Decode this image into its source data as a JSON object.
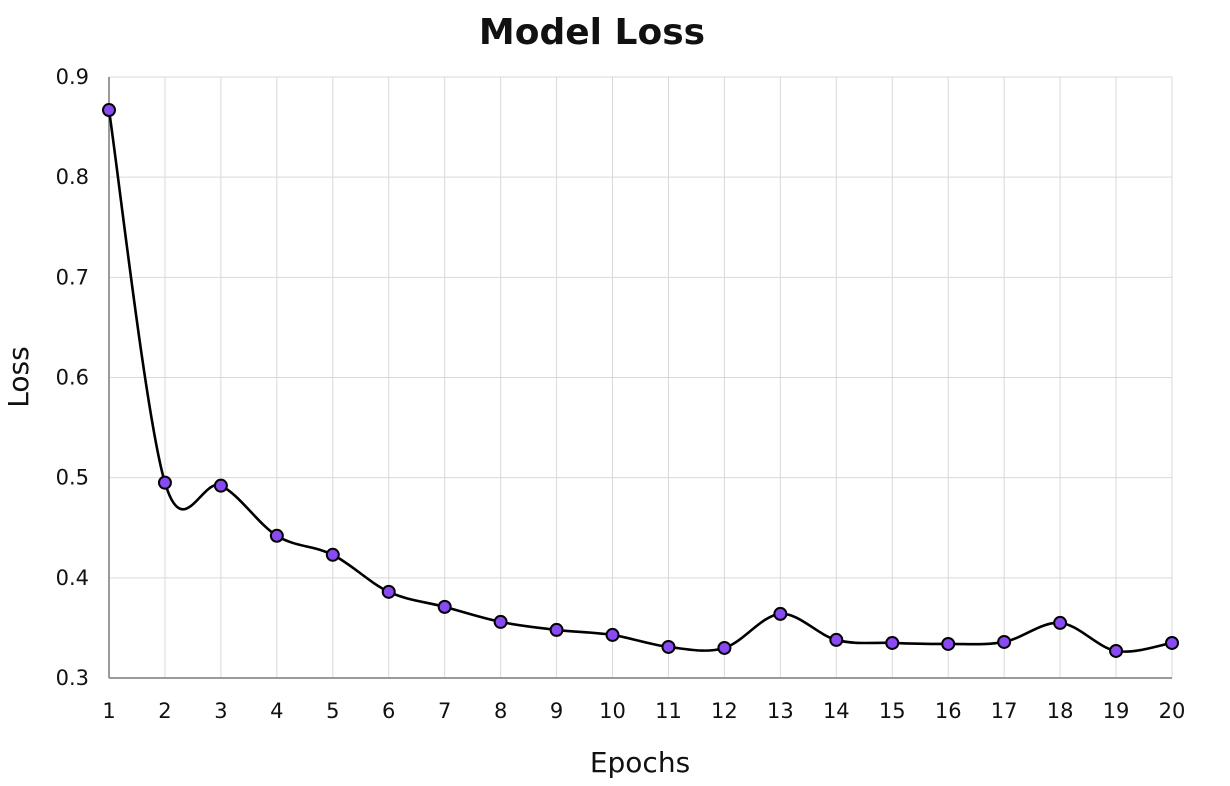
{
  "chart_data": {
    "type": "line",
    "title": "Model Loss",
    "xlabel": "Epochs",
    "ylabel": "Loss",
    "x": [
      1,
      2,
      3,
      4,
      5,
      6,
      7,
      8,
      9,
      10,
      11,
      12,
      13,
      14,
      15,
      16,
      17,
      18,
      19,
      20
    ],
    "series": [
      {
        "values": [
          0.867,
          0.495,
          0.492,
          0.442,
          0.423,
          0.386,
          0.371,
          0.356,
          0.348,
          0.343,
          0.331,
          0.33,
          0.364,
          0.338,
          0.335,
          0.334,
          0.336,
          0.355,
          0.327,
          0.335
        ],
        "color": "#8a4af3"
      }
    ],
    "xlim": [
      1,
      20
    ],
    "ylim": [
      0.3,
      0.9
    ],
    "yticks": [
      "0.3",
      "0.4",
      "0.5",
      "0.6",
      "0.7",
      "0.8",
      "0.9"
    ],
    "grid": true,
    "line_color": "#000000",
    "marker_color": "#8a4af3"
  }
}
